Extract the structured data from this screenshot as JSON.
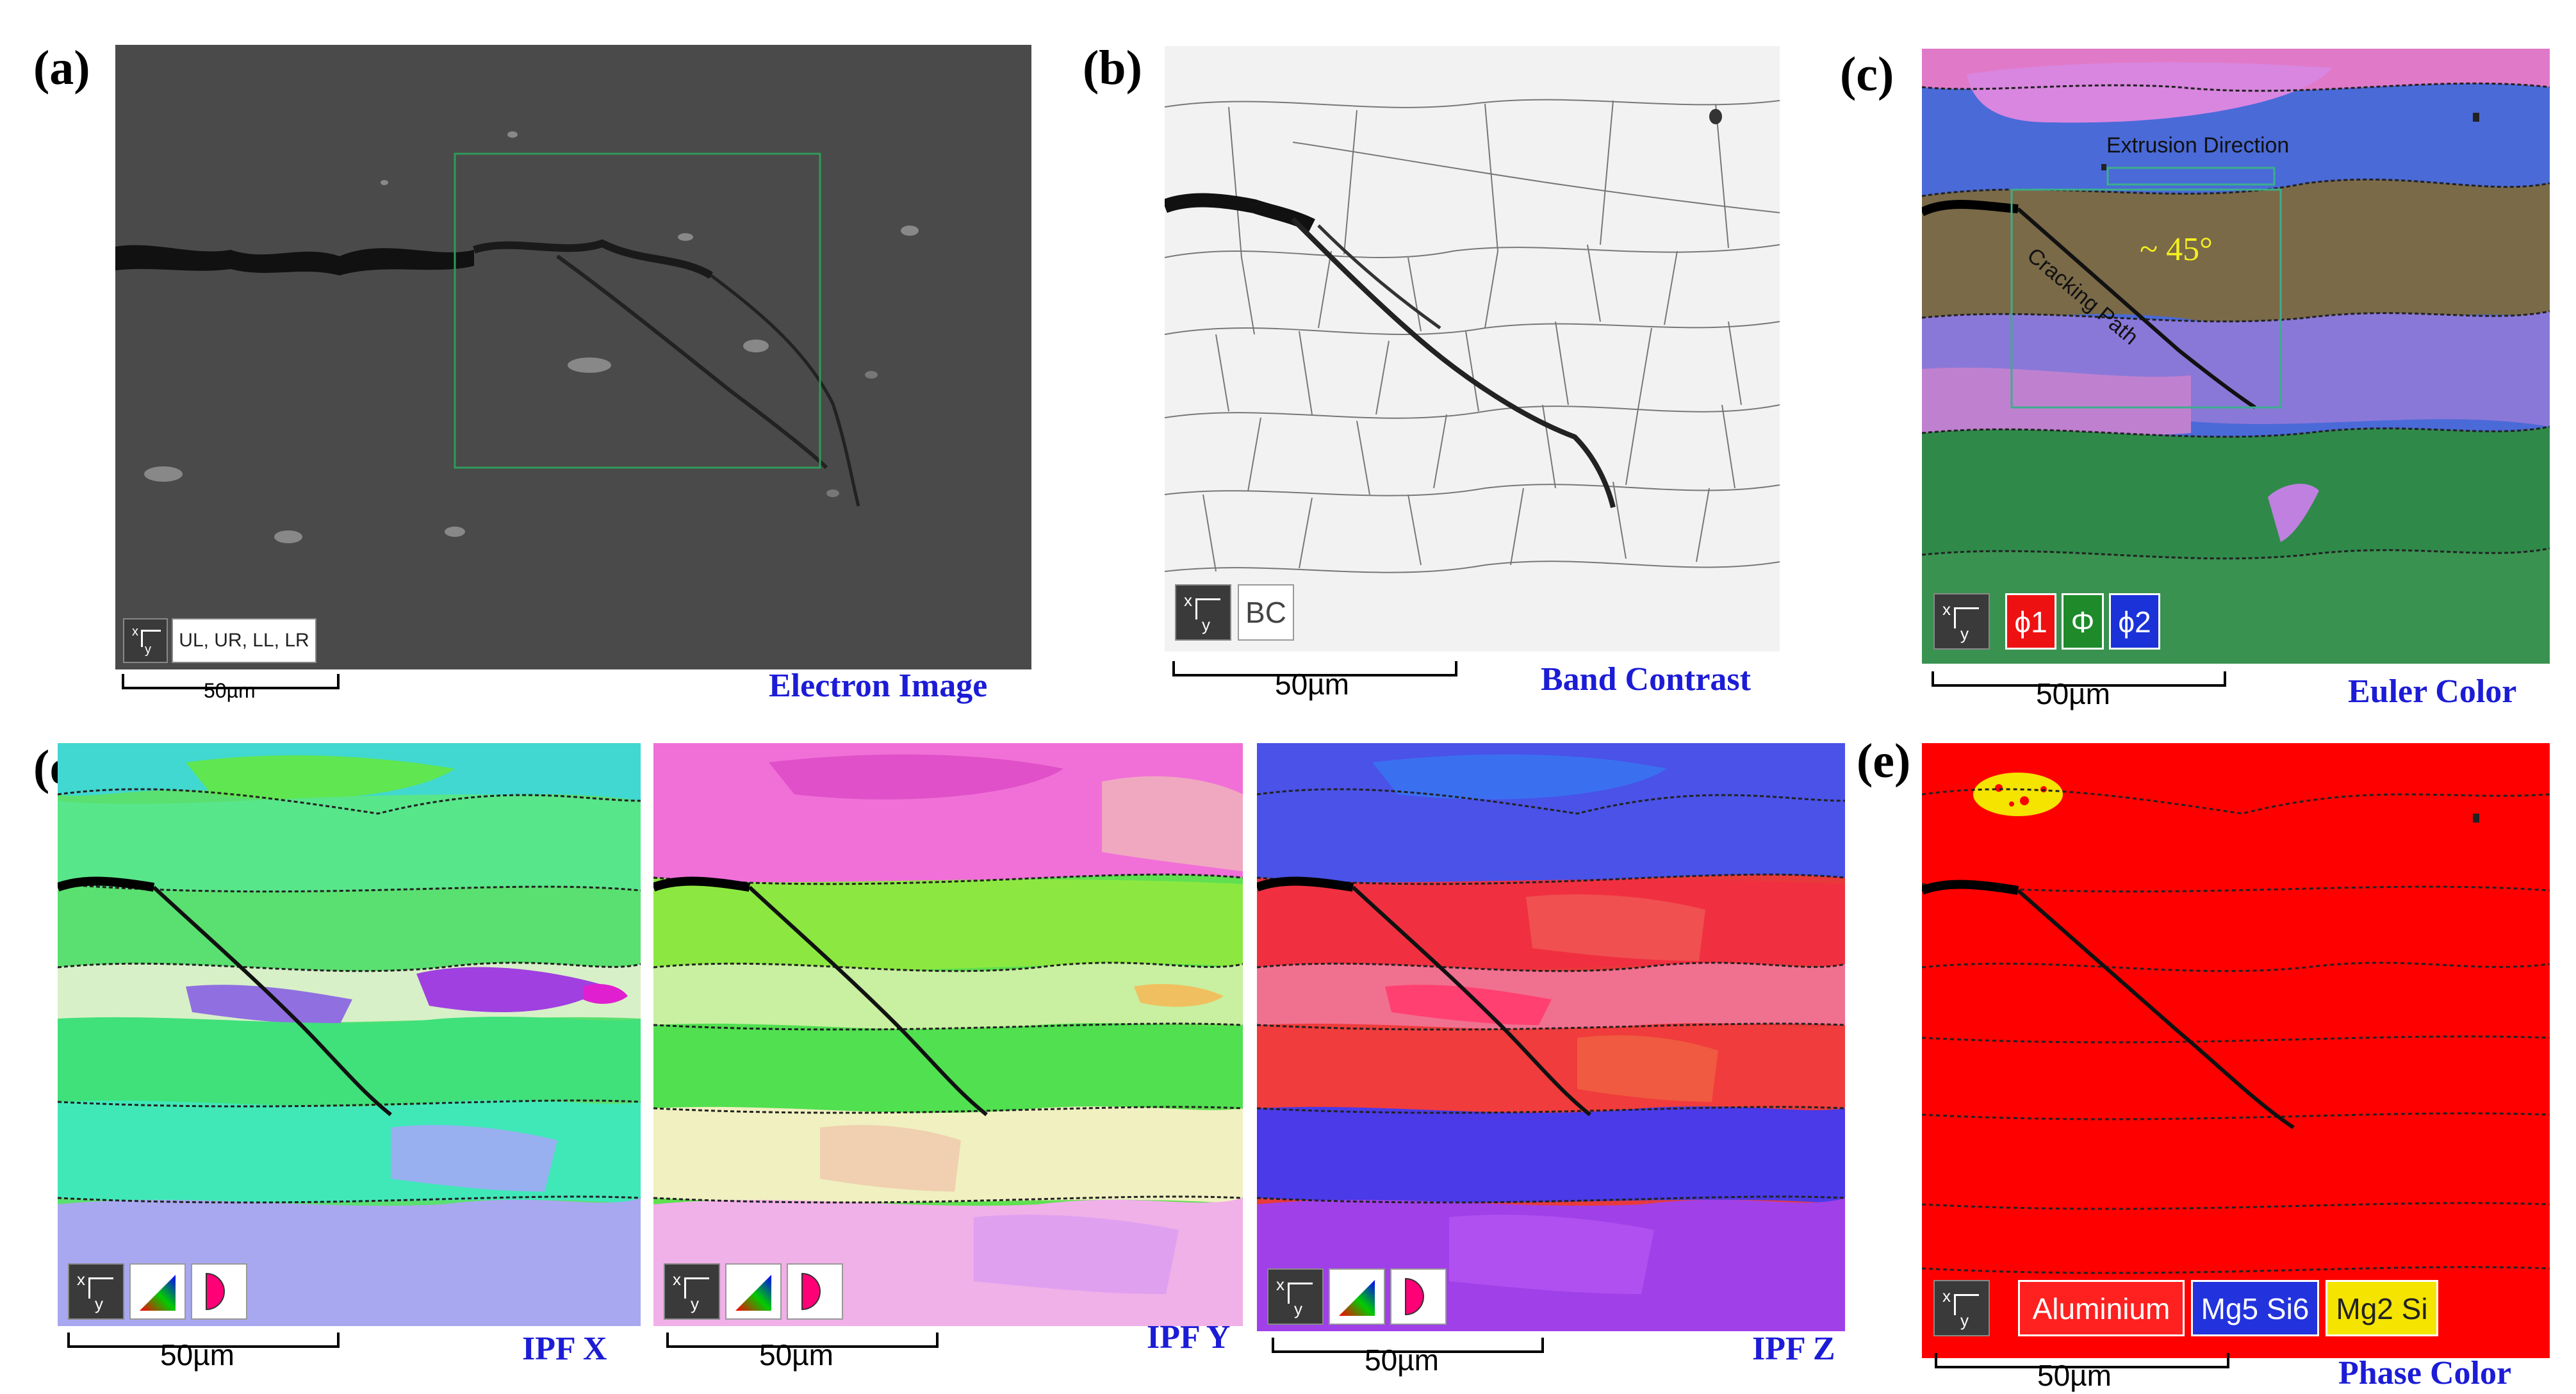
{
  "panels": {
    "a": {
      "label": "(a)",
      "caption": "Electron Image",
      "key": "UL, UR, LL, LR",
      "scalebar": "50µm",
      "colors": {
        "bg": "#4a4a4a",
        "box": "#2f9a5a"
      }
    },
    "b": {
      "label": "(b)",
      "caption": "Band Contrast",
      "key": "BC",
      "scalebar": "50µm"
    },
    "c": {
      "label": "(c)",
      "caption": "Euler Color",
      "key": [
        "ϕ1",
        "Φ",
        "ϕ2"
      ],
      "scalebar": "50µm",
      "annotations": {
        "direction": "Extrusion Direction",
        "angle": "~ 45°",
        "path": "Cracking Path"
      }
    },
    "d": {
      "label": "(d)",
      "captions": [
        "IPF X",
        "IPF Y",
        "IPF Z"
      ],
      "scalebar": "50µm"
    },
    "e": {
      "label": "(e)",
      "caption": "Phase Color",
      "key": [
        "Aluminium",
        "Mg5 Si6",
        "Mg2 Si"
      ],
      "scalebar": "50µm",
      "colors": {
        "aluminium": "#ff0000",
        "mg5si6": "#2233dd",
        "mg2si": "#f5e400"
      }
    }
  },
  "axis_key": {
    "x": "x",
    "y": "y"
  }
}
